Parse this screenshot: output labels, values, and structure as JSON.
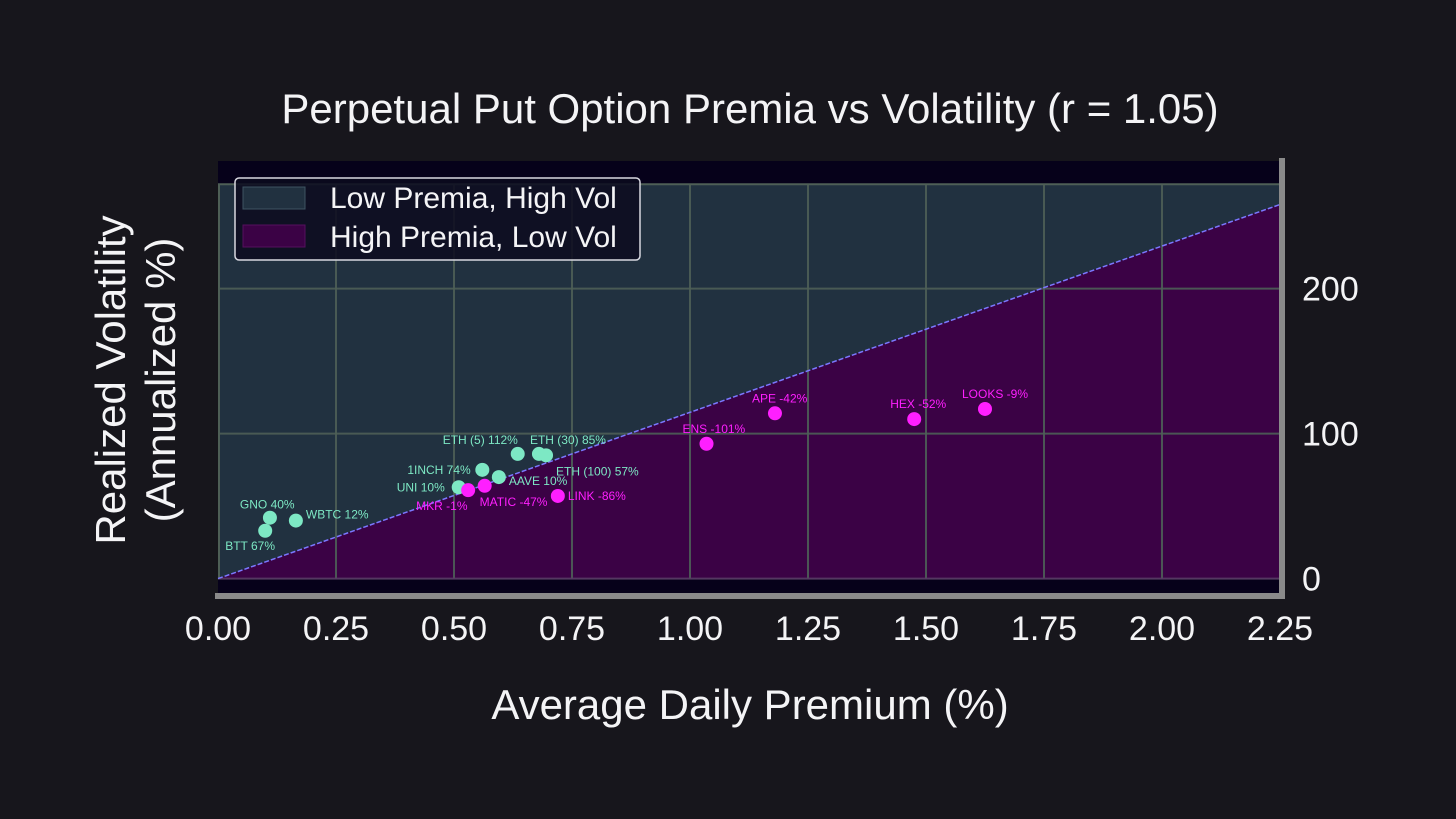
{
  "chart_data": {
    "type": "scatter",
    "title": "Perpetual Put Option Premia vs Volatility (r = 1.05)",
    "xlabel": "Average Daily Premium (%)",
    "ylabel_lines": [
      "Realized Volatility",
      "(Annualized %)"
    ],
    "xlim": [
      0,
      2.25
    ],
    "ylim": [
      -12,
      288
    ],
    "x_ticks": [
      0.0,
      0.25,
      0.5,
      0.75,
      1.0,
      1.25,
      1.5,
      1.75,
      2.0,
      2.25
    ],
    "x_tick_labels": [
      "0.00",
      "0.25",
      "0.50",
      "0.75",
      "1.00",
      "1.25",
      "1.50",
      "1.75",
      "2.00",
      "2.25"
    ],
    "y_ticks": [
      0,
      100,
      200
    ],
    "y_tick_labels": [
      "0",
      "100",
      "200"
    ],
    "y_axis_side": "right",
    "grid": true,
    "divider_line": {
      "x": [
        0,
        2.25
      ],
      "y": [
        0,
        258
      ]
    },
    "regions": [
      {
        "name": "Low Premia, High Vol",
        "color": "#213140"
      },
      {
        "name": "High Premia, Low Vol",
        "color": "#3b0245"
      }
    ],
    "legend_position": "top-left",
    "series": [
      {
        "name": "Low Premia, High Vol",
        "color": "#7de8c4",
        "points": [
          {
            "label": "GNO 40%",
            "x": 0.11,
            "y": 42
          },
          {
            "label": "BTT 67%",
            "x": 0.1,
            "y": 33
          },
          {
            "label": "WBTC 12%",
            "x": 0.165,
            "y": 40
          },
          {
            "label": "UNI 10%",
            "x": 0.51,
            "y": 63
          },
          {
            "label": "1INCH 74%",
            "x": 0.56,
            "y": 75
          },
          {
            "label": "AAVE 10%",
            "x": 0.595,
            "y": 70
          },
          {
            "label": "ETH (5) 112%",
            "x": 0.635,
            "y": 86
          },
          {
            "label": "ETH (30) 85%",
            "x": 0.68,
            "y": 86
          },
          {
            "label": "ETH (100) 57%",
            "x": 0.695,
            "y": 85
          }
        ]
      },
      {
        "name": "High Premia, Low Vol",
        "color": "#ff1fff",
        "points": [
          {
            "label": "MKR -1%",
            "x": 0.53,
            "y": 61
          },
          {
            "label": "MATIC -47%",
            "x": 0.565,
            "y": 64
          },
          {
            "label": "LINK -86%",
            "x": 0.72,
            "y": 57
          },
          {
            "label": "ENS -101%",
            "x": 1.035,
            "y": 93
          },
          {
            "label": "APE -42%",
            "x": 1.18,
            "y": 114
          },
          {
            "label": "HEX -52%",
            "x": 1.475,
            "y": 110
          },
          {
            "label": "LOOKS -9%",
            "x": 1.625,
            "y": 117
          }
        ]
      }
    ]
  },
  "colors": {
    "background": "#17161c",
    "plot_top_band": "#06011a",
    "grid_top": "#4e5f56",
    "grid_bottom": "#5a3d66",
    "divider": "#7b78ff",
    "axis_spine": "#8a8a8a",
    "text": "#f4f4f6",
    "legend_bg": "#0c0a1f",
    "legend_border": "#d8d8e0"
  }
}
